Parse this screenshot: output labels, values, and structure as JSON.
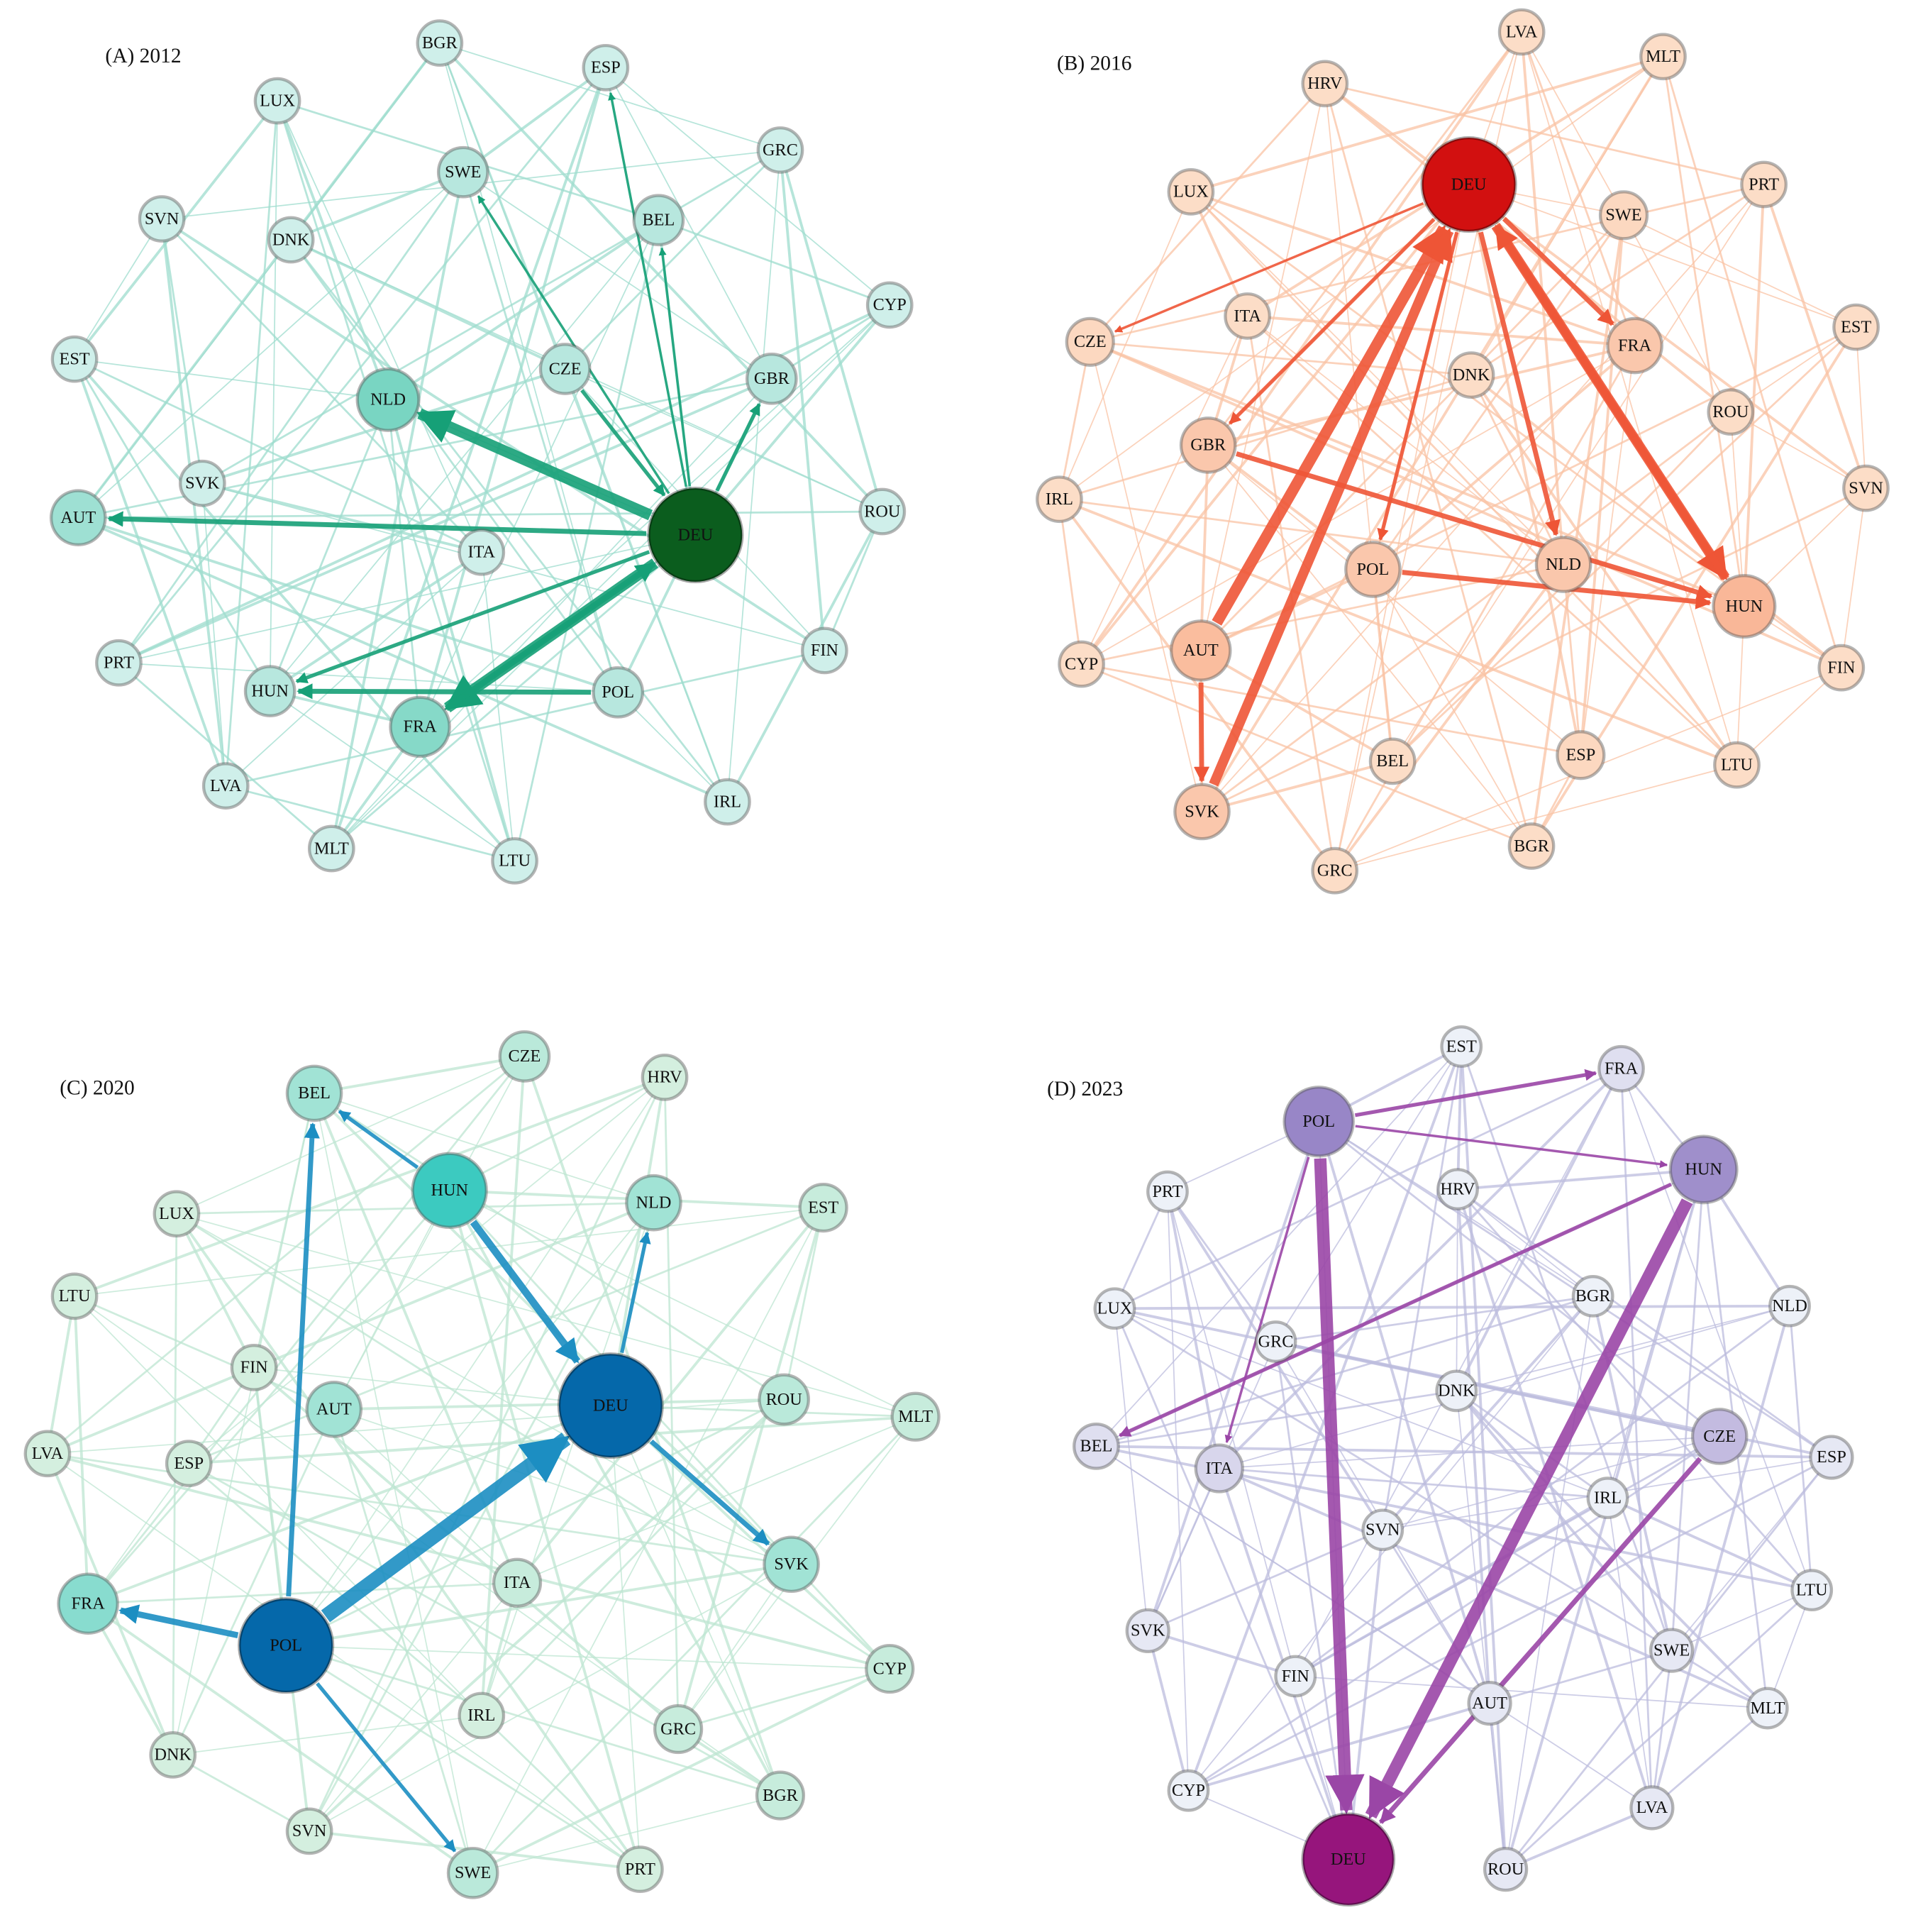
{
  "panels": [
    {
      "title": "(A) 2012",
      "nodes": [
        "BGR",
        "ESP",
        "LUX",
        "GRC",
        "SWE",
        "BEL",
        "SVN",
        "DNK",
        "CYP",
        "EST",
        "CZE",
        "GBR",
        "NLD",
        "SVK",
        "AUT",
        "DEU",
        "ITA",
        "ROU",
        "PRT",
        "HUN",
        "FIN",
        "POL",
        "FRA",
        "LVA",
        "IRL",
        "MLT",
        "LTU"
      ]
    },
    {
      "title": "(B) 2016",
      "nodes": [
        "LVA",
        "MLT",
        "HRV",
        "DEU",
        "LUX",
        "PRT",
        "SWE",
        "ITA",
        "CZE",
        "EST",
        "FRA",
        "DNK",
        "ROU",
        "GBR",
        "IRL",
        "SVN",
        "POL",
        "NLD",
        "HUN",
        "AUT",
        "CYP",
        "FIN",
        "BEL",
        "ESP",
        "LTU",
        "SVK",
        "BGR",
        "GRC"
      ]
    },
    {
      "title": "(C) 2020",
      "nodes": [
        "CZE",
        "HRV",
        "BEL",
        "HUN",
        "NLD",
        "EST",
        "LUX",
        "LTU",
        "FIN",
        "AUT",
        "DEU",
        "ROU",
        "MLT",
        "LVA",
        "ESP",
        "SVK",
        "FRA",
        "POL",
        "ITA",
        "CYP",
        "IRL",
        "GRC",
        "DNK",
        "BGR",
        "SVN",
        "SWE",
        "PRT"
      ]
    },
    {
      "title": "(D) 2023",
      "nodes": [
        "EST",
        "FRA",
        "POL",
        "HUN",
        "PRT",
        "HRV",
        "LUX",
        "BGR",
        "NLD",
        "GRC",
        "DNK",
        "CZE",
        "BEL",
        "ITA",
        "ESP",
        "IRL",
        "SVN",
        "LTU",
        "SVK",
        "SWE",
        "FIN",
        "AUT",
        "MLT",
        "CYP",
        "LVA",
        "DEU",
        "ROU"
      ]
    }
  ]
}
